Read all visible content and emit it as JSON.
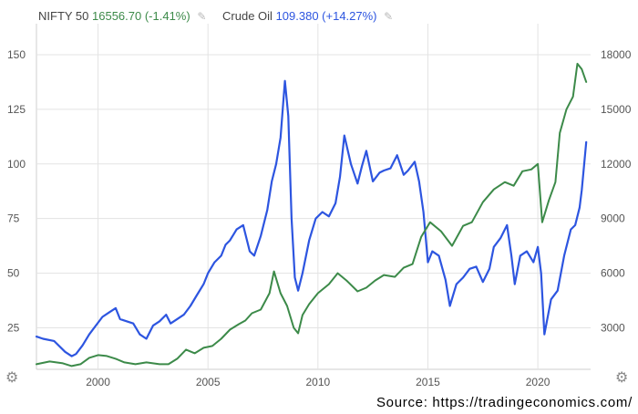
{
  "legend": {
    "nifty_name": "NIFTY 50",
    "nifty_value": "16556.70 (-1.41%)",
    "oil_name": "Crude Oil",
    "oil_value": "109.380 (+14.27%)",
    "pencil_icon": "pencil-icon"
  },
  "settings_icon": "gear-icon",
  "source": "Source: https://tradingeconomics.com/",
  "colors": {
    "nifty": "#3c8a49",
    "oil": "#2d55e0",
    "grid": "#e3e3e3",
    "axis_text": "#555555"
  },
  "chart_data": {
    "type": "line",
    "title": "",
    "xlabel": "",
    "x_ticks": [
      "2000",
      "2005",
      "2010",
      "2015",
      "2020"
    ],
    "x_range": [
      1997.2,
      2022.4
    ],
    "grid": true,
    "legend_position": "top-left",
    "y_left": {
      "series": "Crude Oil",
      "range": [
        6,
        160
      ],
      "ticks": [
        "25",
        "50",
        "75",
        "100",
        "125",
        "150"
      ]
    },
    "y_right": {
      "series": "NIFTY 50",
      "range": [
        720,
        19200
      ],
      "ticks": [
        "3000",
        "6000",
        "9000",
        "12000",
        "15000",
        "18000"
      ]
    },
    "series": [
      {
        "name": "Crude Oil",
        "axis": "left",
        "x": [
          1997.2,
          1997.5,
          1998.0,
          1998.5,
          1998.8,
          1999.0,
          1999.3,
          1999.6,
          1999.9,
          2000.2,
          2000.5,
          2000.8,
          2001.0,
          2001.3,
          2001.6,
          2001.9,
          2002.2,
          2002.5,
          2002.8,
          2003.1,
          2003.3,
          2003.6,
          2003.9,
          2004.2,
          2004.5,
          2004.8,
          2005.0,
          2005.3,
          2005.6,
          2005.8,
          2006.0,
          2006.3,
          2006.6,
          2006.9,
          2007.1,
          2007.4,
          2007.7,
          2007.9,
          2008.1,
          2008.3,
          2008.5,
          2008.65,
          2008.8,
          2008.95,
          2009.1,
          2009.3,
          2009.6,
          2009.9,
          2010.2,
          2010.5,
          2010.8,
          2011.0,
          2011.2,
          2011.5,
          2011.8,
          2012.0,
          2012.2,
          2012.5,
          2012.8,
          2013.0,
          2013.3,
          2013.6,
          2013.9,
          2014.1,
          2014.4,
          2014.6,
          2014.8,
          2015.0,
          2015.2,
          2015.5,
          2015.8,
          2016.0,
          2016.3,
          2016.6,
          2016.9,
          2017.2,
          2017.5,
          2017.8,
          2018.0,
          2018.3,
          2018.6,
          2018.8,
          2018.95,
          2019.2,
          2019.5,
          2019.8,
          2020.0,
          2020.15,
          2020.3,
          2020.6,
          2020.9,
          2021.2,
          2021.5,
          2021.7,
          2021.9,
          2022.0,
          2022.2
        ],
        "y": [
          21,
          20,
          19,
          14,
          12,
          13,
          17,
          22,
          26,
          30,
          32,
          34,
          29,
          28,
          27,
          22,
          20,
          26,
          28,
          31,
          27,
          29,
          31,
          35,
          40,
          45,
          50,
          55,
          58,
          63,
          65,
          70,
          72,
          60,
          58,
          67,
          79,
          92,
          100,
          112,
          138,
          122,
          75,
          48,
          42,
          50,
          65,
          75,
          78,
          76,
          82,
          94,
          113,
          100,
          91,
          99,
          106,
          92,
          96,
          97,
          98,
          104,
          95,
          97,
          101,
          92,
          78,
          55,
          60,
          58,
          47,
          35,
          45,
          48,
          52,
          53,
          46,
          52,
          62,
          66,
          72,
          58,
          45,
          58,
          60,
          55,
          62,
          50,
          22,
          38,
          42,
          58,
          70,
          72,
          80,
          88,
          110
        ]
      },
      {
        "name": "NIFTY 50",
        "axis": "right",
        "x": [
          1997.2,
          1997.8,
          1998.4,
          1998.8,
          1999.2,
          1999.6,
          2000.0,
          2000.4,
          2000.8,
          2001.2,
          2001.7,
          2002.2,
          2002.8,
          2003.2,
          2003.6,
          2004.0,
          2004.4,
          2004.8,
          2005.2,
          2005.6,
          2006.0,
          2006.4,
          2006.7,
          2007.0,
          2007.4,
          2007.8,
          2008.0,
          2008.3,
          2008.6,
          2008.9,
          2009.1,
          2009.3,
          2009.6,
          2010.0,
          2010.5,
          2010.9,
          2011.3,
          2011.8,
          2012.2,
          2012.6,
          2013.0,
          2013.5,
          2013.9,
          2014.3,
          2014.7,
          2015.1,
          2015.6,
          2016.1,
          2016.6,
          2017.0,
          2017.5,
          2018.0,
          2018.5,
          2018.9,
          2019.3,
          2019.7,
          2020.0,
          2020.2,
          2020.5,
          2020.8,
          2021.0,
          2021.3,
          2021.6,
          2021.8,
          2022.0,
          2022.2
        ],
        "y": [
          1000,
          1150,
          1050,
          900,
          1000,
          1350,
          1500,
          1450,
          1300,
          1100,
          1000,
          1100,
          1000,
          1000,
          1300,
          1800,
          1600,
          1900,
          2000,
          2400,
          2900,
          3200,
          3400,
          3800,
          4000,
          4900,
          6100,
          4900,
          4200,
          3000,
          2700,
          3700,
          4300,
          4900,
          5400,
          6000,
          5600,
          5000,
          5200,
          5600,
          5900,
          5800,
          6300,
          6500,
          8000,
          8800,
          8300,
          7500,
          8600,
          8800,
          9900,
          10600,
          11000,
          10800,
          11600,
          11700,
          12000,
          8800,
          10000,
          11000,
          13700,
          15000,
          15700,
          17500,
          17200,
          16500
        ]
      }
    ]
  }
}
